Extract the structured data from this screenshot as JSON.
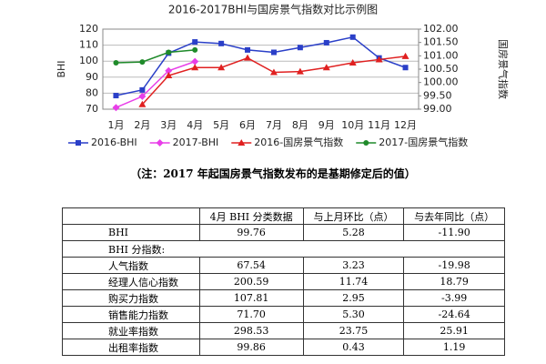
{
  "chart_data": {
    "type": "line",
    "title": "2016-2017BHI与国房景气指数对比示例图",
    "ylabel": "BHI",
    "y2label": "国房景气指数",
    "categories": [
      "1月",
      "2月",
      "3月",
      "4月",
      "5月",
      "6月",
      "7月",
      "8月",
      "9月",
      "10月",
      "11月",
      "12月"
    ],
    "ylim": [
      70,
      120
    ],
    "yticks": [
      70,
      80,
      90,
      100,
      110,
      120
    ],
    "y2lim": [
      99,
      102
    ],
    "y2ticks": [
      {
        "value": 99,
        "label": "99.00"
      },
      {
        "value": 99.5,
        "label": "99.50"
      },
      {
        "value": 100,
        "label": "100.00"
      },
      {
        "value": 100.5,
        "label": "100.50"
      },
      {
        "value": 101,
        "label": "101.00"
      },
      {
        "value": 101.5,
        "label": "101.50"
      },
      {
        "value": 102,
        "label": "102.00"
      }
    ],
    "grid": true,
    "legend": "bottom",
    "series": [
      {
        "name": "2016-BHI",
        "color": "#2a3fc8",
        "marker": "square",
        "values": [
          78.5,
          82,
          105,
          112,
          111,
          107,
          105.5,
          108.5,
          111.5,
          115,
          102,
          96
        ]
      },
      {
        "name": "2017-BHI",
        "color": "#e83ee8",
        "marker": "diamond",
        "values": [
          71,
          78,
          94,
          99.76,
          null,
          null,
          null,
          null,
          null,
          null,
          null,
          null
        ]
      },
      {
        "name": "2016-国房景气指数",
        "color": "#e02020",
        "marker": "triangle",
        "axis": "y2",
        "values": [
          null,
          99.18,
          100.26,
          100.56,
          100.56,
          100.92,
          100.38,
          100.41,
          100.56,
          100.74,
          100.86,
          100.98
        ]
      },
      {
        "name": "2017-国房景气指数",
        "color": "#1f8a2a",
        "marker": "circle",
        "axis": "y2",
        "values": [
          100.74,
          100.77,
          101.13,
          101.22,
          null,
          null,
          null,
          null,
          null,
          null,
          null,
          null
        ]
      }
    ]
  },
  "note": "（注：2017 年起国房景气指数发布的是基期修定后的值）",
  "table": {
    "header": [
      "",
      "4月 BHI 分类数据",
      "与上月环比（点）",
      "与去年同比（点）"
    ],
    "rows": [
      [
        "BHI",
        "99.76",
        "5.28",
        "-11.90"
      ],
      [
        "BHI 分指数:"
      ],
      [
        "人气指数",
        "67.54",
        "3.23",
        "-19.98"
      ],
      [
        "经理人信心指数",
        "200.59",
        "11.74",
        "18.79"
      ],
      [
        "购买力指数",
        "107.81",
        "2.95",
        "-3.99"
      ],
      [
        "销售能力指数",
        "71.70",
        "5.30",
        "-24.64"
      ],
      [
        "就业率指数",
        "298.53",
        "23.75",
        "25.91"
      ],
      [
        "出租率指数",
        "99.86",
        "0.43",
        "1.19"
      ]
    ]
  }
}
